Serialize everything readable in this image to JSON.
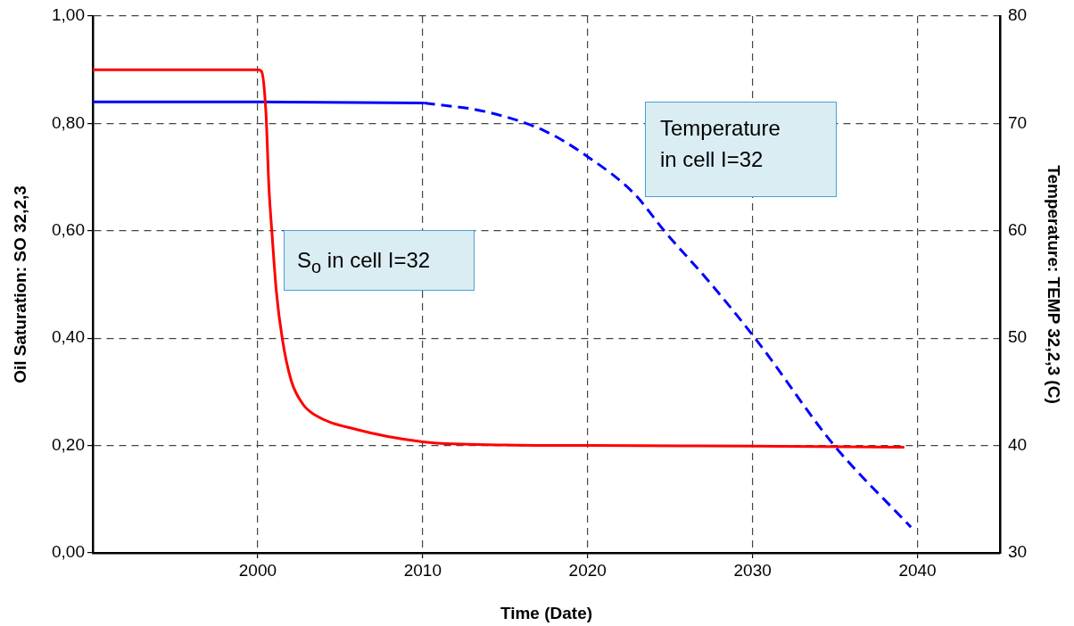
{
  "chart_data": {
    "type": "line",
    "xlabel": "Time (Date)",
    "ylabel": "Oil Saturation: SO 32,2,3",
    "y2label": "Temperature: TEMP 32,2,3 (C)",
    "xlim": [
      1990,
      2045
    ],
    "xticks": [
      2000,
      2010,
      2020,
      2030,
      2040
    ],
    "ylim": [
      0,
      1
    ],
    "yticks": [
      {
        "value": 0,
        "label": "0,00"
      },
      {
        "value": 0.2,
        "label": "0,20"
      },
      {
        "value": 0.4,
        "label": "0,40"
      },
      {
        "value": 0.6,
        "label": "0,60"
      },
      {
        "value": 0.8,
        "label": "0,80"
      },
      {
        "value": 1,
        "label": "1,00"
      }
    ],
    "y2lim": [
      30,
      80
    ],
    "y2ticks": [
      30,
      40,
      50,
      60,
      70,
      80
    ],
    "grid": true,
    "legend": false,
    "marker": "none",
    "annotations": [
      "S$_{o}$ in cell I=32",
      "Temperature in cell I=32"
    ],
    "series": [
      {
        "color": "#ff0000",
        "line_style": "solid",
        "x": [
          1990,
          2000,
          2000.23,
          2000.5,
          2000.68,
          2000.86,
          2001.13,
          2001.49,
          2002.03,
          2002.74,
          2003.46,
          2005.97,
          2010,
          2015,
          2020,
          2030,
          2039.2
        ],
        "values": [
          0.9,
          0.9,
          0.897,
          0.819,
          0.681,
          0.598,
          0.487,
          0.399,
          0.321,
          0.277,
          0.257,
          0.23,
          0.207,
          0.201,
          0.2,
          0.199,
          0.197
        ]
      },
      {
        "color": "#0000ff",
        "axis": "y2",
        "line_style": "solid",
        "x": [
          1990,
          2000,
          2010.1
        ],
        "values": [
          72,
          72,
          71.9
        ]
      },
      {
        "color": "#0000ff",
        "axis": "y2",
        "line_style": "dashed",
        "x": [
          2010.1,
          2013.8,
          2017.4,
          2020.1,
          2022.8,
          2024.7,
          2027.4,
          2030.3,
          2034.9,
          2039.6
        ],
        "values": [
          71.9,
          71.1,
          69.3,
          66.8,
          63.5,
          59.9,
          55.2,
          49.7,
          40.1,
          32.4
        ]
      }
    ]
  }
}
